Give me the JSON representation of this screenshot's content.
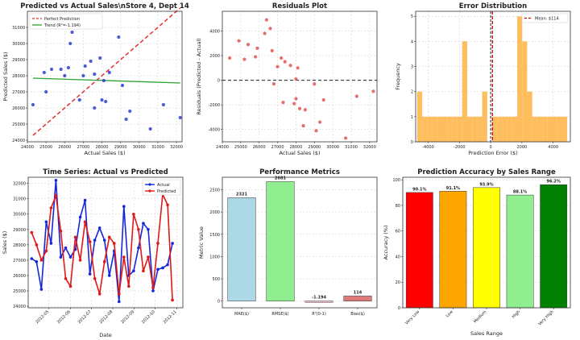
{
  "chart_data": [
    {
      "type": "scatter",
      "title": "Predicted vs Actual Sales\\nStore 4, Dept 14",
      "xlabel": "Actual Sales ($)",
      "ylabel": "Predicted Sales ($)",
      "xlim": [
        24000,
        32300
      ],
      "ylim": [
        23900,
        32000
      ],
      "xticks": [
        24000,
        25000,
        26000,
        27000,
        28000,
        29000,
        30000,
        31000,
        32000
      ],
      "yticks": [
        24000,
        25000,
        26000,
        27000,
        28000,
        29000,
        30000,
        31000
      ],
      "legend_position": "top-left",
      "grid": true,
      "colors": {
        "points": "#2233cc",
        "perfect": "#e53030",
        "trend": "#2ca02c"
      },
      "points": {
        "x": [
          24300,
          24900,
          25000,
          25300,
          25800,
          26000,
          26200,
          26300,
          26400,
          26600,
          26800,
          27000,
          27100,
          27400,
          27600,
          27600,
          27900,
          28000,
          28100,
          28200,
          28400,
          28900,
          29100,
          29300,
          29500,
          30600,
          31300,
          32200
        ],
        "y": [
          26200,
          28200,
          27000,
          28400,
          28400,
          28000,
          28500,
          30000,
          30700,
          31400,
          26500,
          28000,
          28600,
          28900,
          28100,
          26000,
          29100,
          26500,
          27700,
          26400,
          28200,
          30400,
          27400,
          25300,
          25800,
          24700,
          26200,
          25400
        ]
      },
      "series": [
        {
          "name": "Perfect Prediction",
          "x": [
            24300,
            32200
          ],
          "y": [
            24300,
            32200
          ]
        },
        {
          "name": "Trend (R²=-1.194)",
          "x": [
            24300,
            32200
          ],
          "y": [
            27850,
            27550
          ]
        }
      ]
    },
    {
      "type": "scatter",
      "title": "Residuals Plot",
      "xlabel": "Actual Sales ($)",
      "ylabel": "Residuals (Predicted - Actual)",
      "xlim": [
        24000,
        32400
      ],
      "ylim": [
        -5000,
        5600
      ],
      "xticks": [
        24000,
        25000,
        26000,
        27000,
        28000,
        29000,
        30000,
        31000,
        32000
      ],
      "yticks": [
        -4000,
        -2000,
        0,
        2000,
        4000
      ],
      "grid": true,
      "reference_line_y": 0,
      "colors": {
        "points": "#e05555",
        "reference": "#222222"
      },
      "points": {
        "x": [
          24400,
          24900,
          25200,
          25400,
          25800,
          25900,
          26300,
          26400,
          26600,
          26700,
          26800,
          27000,
          27200,
          27300,
          27400,
          27700,
          27900,
          28000,
          28000,
          28100,
          28200,
          28400,
          28500,
          29000,
          29100,
          29300,
          29500,
          30700,
          31300,
          32200
        ],
        "y": [
          1800,
          3200,
          1700,
          2900,
          1900,
          2600,
          3800,
          4900,
          4200,
          2400,
          -300,
          1100,
          1800,
          -1800,
          1500,
          1200,
          -1900,
          -1500,
          100,
          1000,
          -2300,
          -3700,
          -2400,
          -300,
          -4100,
          -3400,
          -1600,
          -4700,
          -1300,
          -900
        ]
      }
    },
    {
      "type": "bar",
      "title": "Error Distribution",
      "xlabel": "Prediction Error ($)",
      "ylabel": "Frequency",
      "xlim": [
        -4800,
        5100
      ],
      "ylim": [
        0,
        5.2
      ],
      "xticks": [
        -4000,
        -2000,
        0,
        2000,
        4000
      ],
      "yticks": [
        0,
        1,
        2,
        3,
        4,
        5
      ],
      "bin_edges": [
        -4700,
        -4380,
        -4060,
        -3740,
        -3420,
        -3100,
        -2780,
        -2460,
        -2140,
        -1820,
        -1500,
        -1180,
        -860,
        -540,
        -220,
        100,
        420,
        740,
        1060,
        1380,
        1700,
        2020,
        2340,
        2660,
        2980,
        3300,
        3620,
        3940,
        4260,
        4580,
        4900
      ],
      "counts": [
        2,
        1,
        1,
        1,
        1,
        1,
        1,
        1,
        1,
        4,
        1,
        1,
        1,
        2,
        0,
        1,
        1,
        1,
        1,
        1,
        5,
        4,
        2,
        1,
        1,
        1,
        1,
        1,
        1,
        1
      ],
      "mean_line": {
        "label": "Mean: $114",
        "value": 114
      },
      "legend_position": "top-right",
      "grid": true,
      "colors": {
        "bars": "#ffb74d",
        "mean": "#cc0000",
        "zero": "#222222"
      }
    },
    {
      "type": "line",
      "title": "Time Series: Actual vs Predicted",
      "xlabel": "Date",
      "ylabel": "Sales ($)",
      "xlim": [
        "2012-04-01",
        "2012-11-10"
      ],
      "ylim": [
        23900,
        32400
      ],
      "xticks": [
        "2012-05",
        "2012-06",
        "2012-07",
        "2012-08",
        "2012-09",
        "2012-10",
        "2012-11"
      ],
      "yticks": [
        24000,
        25000,
        26000,
        27000,
        28000,
        29000,
        30000,
        31000,
        32000
      ],
      "legend_position": "top-right",
      "grid": true,
      "x": [
        "2012-04-06",
        "2012-04-13",
        "2012-04-20",
        "2012-04-27",
        "2012-05-04",
        "2012-05-11",
        "2012-05-18",
        "2012-05-25",
        "2012-06-01",
        "2012-06-08",
        "2012-06-15",
        "2012-06-22",
        "2012-06-29",
        "2012-07-06",
        "2012-07-13",
        "2012-07-20",
        "2012-07-27",
        "2012-08-03",
        "2012-08-10",
        "2012-08-17",
        "2012-08-24",
        "2012-08-31",
        "2012-09-07",
        "2012-09-14",
        "2012-09-21",
        "2012-09-28",
        "2012-10-05",
        "2012-10-12",
        "2012-10-19",
        "2012-10-26"
      ],
      "series": [
        {
          "name": "Actual",
          "color": "#1428d8",
          "values": [
            27100,
            26900,
            25100,
            29500,
            28100,
            32200,
            27200,
            27800,
            27200,
            27700,
            29800,
            30900,
            26100,
            28300,
            29100,
            28300,
            26000,
            27600,
            24300,
            30500,
            26000,
            26300,
            27800,
            29400,
            29000,
            25000,
            26400,
            26500,
            26700,
            28100
          ]
        },
        {
          "name": "Predicted",
          "color": "#e01818",
          "values": [
            28800,
            28000,
            27000,
            27600,
            30400,
            31200,
            28900,
            25800,
            25300,
            28500,
            27000,
            29500,
            28200,
            25800,
            24800,
            26900,
            28500,
            28100,
            24800,
            27200,
            25300,
            30000,
            29000,
            26300,
            27200,
            25200,
            28100,
            31300,
            30600,
            24400
          ]
        }
      ]
    },
    {
      "type": "bar",
      "title": "Performance Metrics",
      "ylabel": "Metric Value",
      "ylim": [
        -150,
        2780
      ],
      "yticks": [
        0,
        500,
        1000,
        1500,
        2000,
        2500
      ],
      "grid": true,
      "categories": [
        "MAE($)",
        "RMSE($)",
        "R²(0-1)",
        "Bias($)"
      ],
      "values": [
        2321,
        2681,
        -1.194,
        114
      ],
      "value_labels": [
        "2321",
        "2681",
        "-1.194",
        "114"
      ],
      "colors": [
        "#add8e6",
        "#90ee90",
        "#ffb6c1",
        "#e07a7a"
      ]
    },
    {
      "type": "bar",
      "title": "Prediction Accuracy by Sales Range",
      "xlabel": "Sales Range",
      "ylabel": "Accuracy (%)",
      "ylim": [
        0,
        102
      ],
      "yticks": [
        0,
        20,
        40,
        60,
        80,
        100
      ],
      "grid": true,
      "categories": [
        "Very Low",
        "Low",
        "Medium",
        "High",
        "Very High"
      ],
      "values": [
        90.1,
        91.1,
        93.9,
        88.1,
        96.2
      ],
      "value_labels": [
        "90.1%",
        "91.1%",
        "93.9%",
        "88.1%",
        "96.2%"
      ],
      "colors": [
        "#ff0000",
        "#ffa500",
        "#ffff00",
        "#90ee90",
        "#008000"
      ]
    }
  ]
}
